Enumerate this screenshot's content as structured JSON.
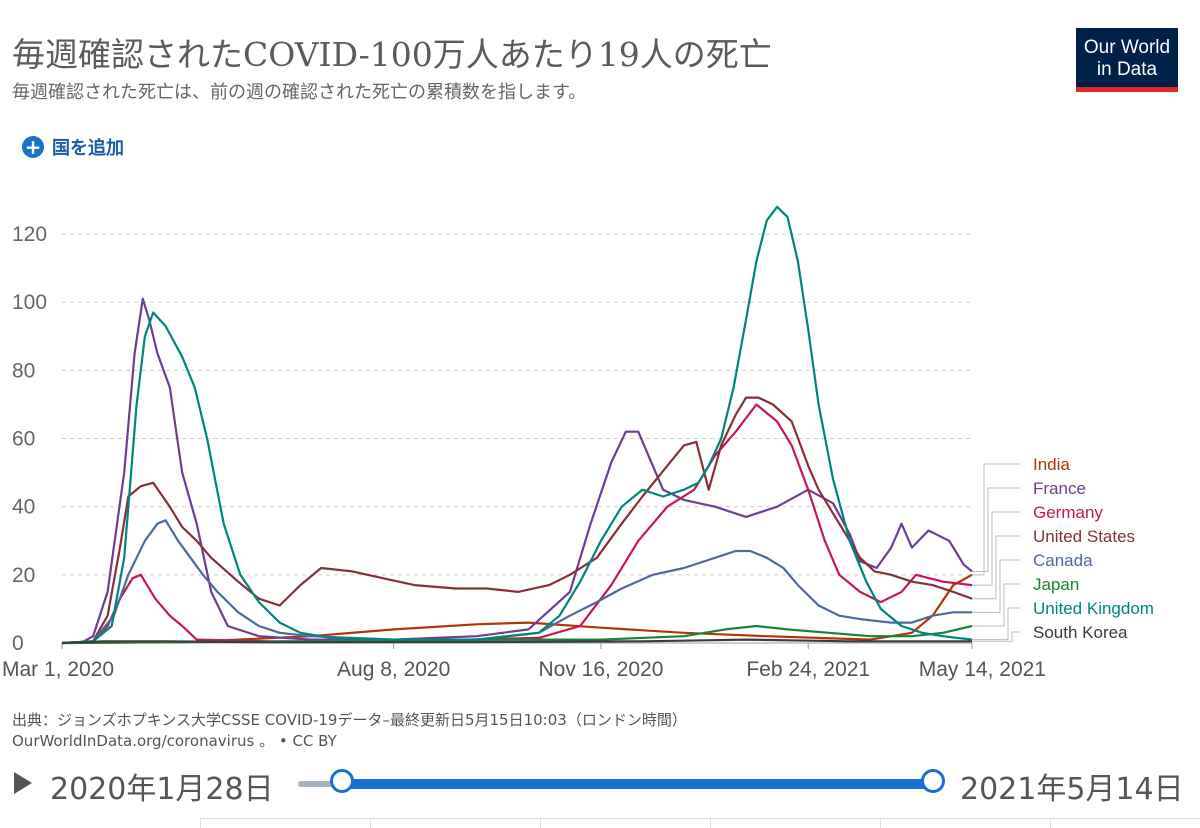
{
  "header": {
    "title": "毎週確認されたCOVID-100万人あたり19人の死亡",
    "subtitle": "毎週確認された死亡は、前の週の確認された死亡の累積数を指します。",
    "logo_line1": "Our World",
    "logo_line2": "in Data"
  },
  "controls": {
    "add_country": "国を追加",
    "add_icon": "+"
  },
  "source": {
    "line1": "出典：ジョンズホプキンス大学CSSE COVID-19データ–最終更新日5月15日10:03（ロンドン時間）",
    "line2": "OurWorldInData.org/coronavirus 。 • CC BY"
  },
  "timeline": {
    "start_label": "2020年1月28日",
    "end_label": "2021年5月14日",
    "start_fraction": 0.0,
    "end_fraction": 1.0
  },
  "chart_data": {
    "type": "line",
    "x_tick_labels": [
      "Mar 1, 2020",
      "Aug 8, 2020",
      "Nov 16, 2020",
      "Feb 24, 2021",
      "May 14, 2021"
    ],
    "x_tick_days": [
      0,
      160,
      260,
      360,
      439
    ],
    "y_ticks": [
      0,
      20,
      40,
      60,
      80,
      100,
      120
    ],
    "ylim": [
      0,
      130
    ],
    "xlim": [
      0,
      439
    ],
    "grid": "horizontal dashed",
    "legend_placement": "right",
    "series": [
      {
        "name": "India",
        "color": "#b13507",
        "points": [
          [
            0,
            0
          ],
          [
            60,
            0.3
          ],
          [
            120,
            2
          ],
          [
            160,
            4
          ],
          [
            200,
            5.5
          ],
          [
            225,
            6
          ],
          [
            260,
            4.5
          ],
          [
            300,
            3
          ],
          [
            340,
            2
          ],
          [
            390,
            1
          ],
          [
            410,
            3
          ],
          [
            420,
            8
          ],
          [
            430,
            17
          ],
          [
            439,
            20
          ]
        ]
      },
      {
        "name": "France",
        "color": "#6d3e91",
        "points": [
          [
            0,
            0
          ],
          [
            10,
            0.3
          ],
          [
            15,
            2
          ],
          [
            22,
            15
          ],
          [
            30,
            50
          ],
          [
            35,
            85
          ],
          [
            39,
            101
          ],
          [
            42,
            95
          ],
          [
            46,
            85
          ],
          [
            52,
            75
          ],
          [
            58,
            50
          ],
          [
            65,
            35
          ],
          [
            72,
            15
          ],
          [
            80,
            5
          ],
          [
            95,
            2
          ],
          [
            120,
            1
          ],
          [
            160,
            1
          ],
          [
            200,
            2
          ],
          [
            225,
            4
          ],
          [
            245,
            15
          ],
          [
            255,
            35
          ],
          [
            265,
            53
          ],
          [
            272,
            62
          ],
          [
            278,
            62
          ],
          [
            285,
            52
          ],
          [
            290,
            45
          ],
          [
            300,
            42
          ],
          [
            315,
            40
          ],
          [
            330,
            37
          ],
          [
            345,
            40
          ],
          [
            360,
            45
          ],
          [
            372,
            41
          ],
          [
            380,
            32
          ],
          [
            385,
            24
          ],
          [
            393,
            22
          ],
          [
            400,
            28
          ],
          [
            405,
            35
          ],
          [
            410,
            28
          ],
          [
            418,
            33
          ],
          [
            428,
            30
          ],
          [
            435,
            23
          ],
          [
            439,
            21
          ]
        ]
      },
      {
        "name": "Germany",
        "color": "#c2185b",
        "points": [
          [
            0,
            0
          ],
          [
            15,
            0.5
          ],
          [
            22,
            5
          ],
          [
            28,
            13
          ],
          [
            34,
            19
          ],
          [
            38,
            20
          ],
          [
            45,
            13
          ],
          [
            52,
            8
          ],
          [
            58,
            5
          ],
          [
            65,
            1
          ],
          [
            100,
            0.5
          ],
          [
            160,
            0.5
          ],
          [
            230,
            1.5
          ],
          [
            250,
            5
          ],
          [
            265,
            17
          ],
          [
            278,
            30
          ],
          [
            292,
            40
          ],
          [
            305,
            45
          ],
          [
            315,
            55
          ],
          [
            325,
            62
          ],
          [
            335,
            70
          ],
          [
            345,
            65
          ],
          [
            352,
            58
          ],
          [
            360,
            45
          ],
          [
            368,
            30
          ],
          [
            375,
            20
          ],
          [
            385,
            15
          ],
          [
            395,
            12
          ],
          [
            405,
            15
          ],
          [
            412,
            20
          ],
          [
            425,
            18
          ],
          [
            439,
            17
          ]
        ]
      },
      {
        "name": "United States",
        "color": "#883039",
        "points": [
          [
            0,
            0
          ],
          [
            15,
            0.5
          ],
          [
            22,
            8
          ],
          [
            28,
            28
          ],
          [
            32,
            43
          ],
          [
            38,
            46
          ],
          [
            44,
            47
          ],
          [
            52,
            40
          ],
          [
            58,
            34
          ],
          [
            65,
            30
          ],
          [
            72,
            25
          ],
          [
            85,
            18
          ],
          [
            95,
            13
          ],
          [
            105,
            11
          ],
          [
            115,
            17
          ],
          [
            125,
            22
          ],
          [
            140,
            21
          ],
          [
            155,
            19
          ],
          [
            170,
            17
          ],
          [
            190,
            16
          ],
          [
            205,
            16
          ],
          [
            220,
            15
          ],
          [
            235,
            17
          ],
          [
            245,
            20
          ],
          [
            258,
            25
          ],
          [
            270,
            35
          ],
          [
            280,
            43
          ],
          [
            292,
            52
          ],
          [
            300,
            58
          ],
          [
            306,
            59
          ],
          [
            312,
            45
          ],
          [
            318,
            58
          ],
          [
            325,
            67
          ],
          [
            330,
            72
          ],
          [
            336,
            72
          ],
          [
            343,
            70
          ],
          [
            352,
            65
          ],
          [
            360,
            52
          ],
          [
            365,
            45
          ],
          [
            372,
            38
          ],
          [
            378,
            32
          ],
          [
            385,
            25
          ],
          [
            392,
            21
          ],
          [
            400,
            20
          ],
          [
            410,
            18
          ],
          [
            420,
            17
          ],
          [
            430,
            15
          ],
          [
            439,
            13
          ]
        ]
      },
      {
        "name": "Canada",
        "color": "#4c6a9c",
        "points": [
          [
            0,
            0
          ],
          [
            15,
            0.5
          ],
          [
            25,
            8
          ],
          [
            32,
            20
          ],
          [
            40,
            30
          ],
          [
            46,
            35
          ],
          [
            50,
            36
          ],
          [
            56,
            30
          ],
          [
            62,
            25
          ],
          [
            68,
            20
          ],
          [
            75,
            15
          ],
          [
            85,
            9
          ],
          [
            95,
            5
          ],
          [
            105,
            3
          ],
          [
            120,
            2
          ],
          [
            160,
            1
          ],
          [
            200,
            1
          ],
          [
            230,
            3
          ],
          [
            245,
            8
          ],
          [
            258,
            12
          ],
          [
            270,
            16
          ],
          [
            285,
            20
          ],
          [
            300,
            22
          ],
          [
            315,
            25
          ],
          [
            325,
            27
          ],
          [
            332,
            27
          ],
          [
            340,
            25
          ],
          [
            348,
            22
          ],
          [
            355,
            17
          ],
          [
            365,
            11
          ],
          [
            375,
            8
          ],
          [
            385,
            7
          ],
          [
            400,
            6
          ],
          [
            410,
            6
          ],
          [
            420,
            8
          ],
          [
            430,
            9
          ],
          [
            439,
            9
          ]
        ]
      },
      {
        "name": "Japan",
        "color": "#18833a",
        "points": [
          [
            0,
            0
          ],
          [
            60,
            0.3
          ],
          [
            120,
            0.5
          ],
          [
            160,
            0.8
          ],
          [
            220,
            1
          ],
          [
            260,
            1
          ],
          [
            300,
            2
          ],
          [
            320,
            4
          ],
          [
            335,
            5
          ],
          [
            350,
            4
          ],
          [
            370,
            3
          ],
          [
            390,
            2
          ],
          [
            410,
            2
          ],
          [
            425,
            3
          ],
          [
            432,
            4
          ],
          [
            439,
            5
          ]
        ]
      },
      {
        "name": "United Kingdom",
        "color": "#00847e",
        "points": [
          [
            0,
            0
          ],
          [
            15,
            0.5
          ],
          [
            24,
            5
          ],
          [
            30,
            25
          ],
          [
            36,
            70
          ],
          [
            40,
            90
          ],
          [
            44,
            97
          ],
          [
            50,
            93
          ],
          [
            58,
            84
          ],
          [
            64,
            75
          ],
          [
            70,
            60
          ],
          [
            78,
            35
          ],
          [
            86,
            20
          ],
          [
            95,
            12
          ],
          [
            105,
            6
          ],
          [
            115,
            3
          ],
          [
            130,
            1.5
          ],
          [
            160,
            1
          ],
          [
            200,
            1
          ],
          [
            230,
            3
          ],
          [
            240,
            8
          ],
          [
            250,
            18
          ],
          [
            260,
            30
          ],
          [
            270,
            40
          ],
          [
            280,
            45
          ],
          [
            290,
            43
          ],
          [
            300,
            45
          ],
          [
            307,
            47
          ],
          [
            312,
            52
          ],
          [
            318,
            60
          ],
          [
            324,
            75
          ],
          [
            330,
            95
          ],
          [
            335,
            112
          ],
          [
            340,
            124
          ],
          [
            345,
            128
          ],
          [
            350,
            125
          ],
          [
            355,
            112
          ],
          [
            360,
            92
          ],
          [
            365,
            70
          ],
          [
            372,
            48
          ],
          [
            380,
            30
          ],
          [
            388,
            18
          ],
          [
            395,
            10
          ],
          [
            405,
            5
          ],
          [
            415,
            3
          ],
          [
            425,
            2
          ],
          [
            439,
            1
          ]
        ]
      },
      {
        "name": "South Korea",
        "color": "#3c3c3c",
        "points": [
          [
            0,
            0
          ],
          [
            20,
            0.5
          ],
          [
            50,
            0.5
          ],
          [
            100,
            0.2
          ],
          [
            200,
            0.3
          ],
          [
            280,
            0.5
          ],
          [
            310,
            0.8
          ],
          [
            330,
            1
          ],
          [
            350,
            0.8
          ],
          [
            380,
            0.5
          ],
          [
            410,
            0.5
          ],
          [
            439,
            0.5
          ]
        ]
      }
    ]
  }
}
